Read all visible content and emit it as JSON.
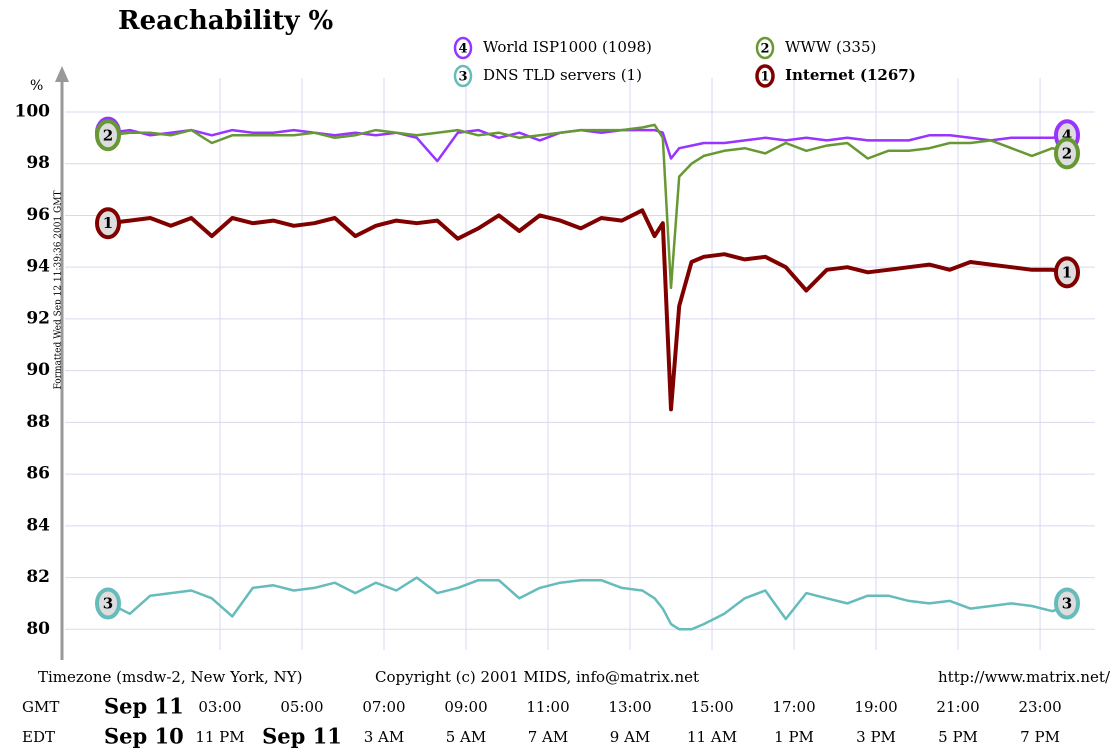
{
  "chart_data": {
    "type": "line",
    "title": "Reachability %",
    "y_label": "%",
    "side_note": "Formatted Wed Sep 12 11:39:36 2001 GMT",
    "footer": [
      "Timezone (msdw-2, New York, NY)",
      "Copyright (c) 2001 MIDS, info@matrix.net",
      "http://www.matrix.net/"
    ],
    "x": [
      0.3,
      0.8,
      1.3,
      1.8,
      2.3,
      2.8,
      3.3,
      3.8,
      4.3,
      4.8,
      5.3,
      5.8,
      6.3,
      6.8,
      7.3,
      7.8,
      8.3,
      8.8,
      9.3,
      9.8,
      10.3,
      10.8,
      11.3,
      11.8,
      12.3,
      12.8,
      13.3,
      13.6,
      13.8,
      14.0,
      14.2,
      14.5,
      14.8,
      15.3,
      15.8,
      16.3,
      16.8,
      17.3,
      17.8,
      18.3,
      18.8,
      19.3,
      19.8,
      20.3,
      20.8,
      21.3,
      21.8,
      22.3,
      22.8,
      23.3,
      23.8
    ],
    "xlim": [
      -0.78,
      24.34
    ],
    "x_rows": [
      {
        "name": "GMT",
        "start_label": "Sep 11",
        "ticks": [
          {
            "value": 3,
            "label": "03:00"
          },
          {
            "value": 5,
            "label": "05:00"
          },
          {
            "value": 7,
            "label": "07:00"
          },
          {
            "value": 9,
            "label": "09:00"
          },
          {
            "value": 11,
            "label": "11:00"
          },
          {
            "value": 13,
            "label": "13:00"
          },
          {
            "value": 15,
            "label": "15:00"
          },
          {
            "value": 17,
            "label": "17:00"
          },
          {
            "value": 19,
            "label": "19:00"
          },
          {
            "value": 21,
            "label": "21:00"
          },
          {
            "value": 23,
            "label": "23:00"
          }
        ]
      },
      {
        "name": "EDT",
        "start_label": "Sep 10",
        "date_ticks": [
          {
            "value": 5,
            "label": "Sep 11"
          }
        ],
        "ticks": [
          {
            "value": 3,
            "label": "11 PM"
          },
          {
            "value": 7,
            "label": "3 AM"
          },
          {
            "value": 9,
            "label": "5 AM"
          },
          {
            "value": 11,
            "label": "7 AM"
          },
          {
            "value": 13,
            "label": "9 AM"
          },
          {
            "value": 15,
            "label": "11 AM"
          },
          {
            "value": 17,
            "label": "1 PM"
          },
          {
            "value": 19,
            "label": "3 PM"
          },
          {
            "value": 21,
            "label": "5 PM"
          },
          {
            "value": 23,
            "label": "7 PM"
          }
        ]
      }
    ],
    "ylim": [
      79.2,
      101.7
    ],
    "yticks": [
      80,
      82,
      84,
      86,
      88,
      90,
      92,
      94,
      96,
      98,
      100
    ],
    "grid": true,
    "series": [
      {
        "name": "World ISP1000 (1098)",
        "badge": "4",
        "color": "#9933ff",
        "values": [
          99.2,
          99.3,
          99.1,
          99.2,
          99.3,
          99.1,
          99.3,
          99.2,
          99.2,
          99.3,
          99.2,
          99.1,
          99.2,
          99.1,
          99.2,
          99.0,
          98.1,
          99.2,
          99.3,
          99.0,
          99.2,
          98.9,
          99.2,
          99.3,
          99.2,
          99.3,
          99.3,
          99.3,
          99.2,
          98.2,
          98.6,
          98.7,
          98.8,
          98.8,
          98.9,
          99.0,
          98.9,
          99.0,
          98.9,
          99.0,
          98.9,
          98.9,
          98.9,
          99.1,
          99.1,
          99.0,
          98.9,
          99.0,
          99.0,
          99.0,
          99.1
        ]
      },
      {
        "name": "WWW (335)",
        "badge": "2",
        "color": "#669933",
        "values": [
          99.1,
          99.2,
          99.2,
          99.1,
          99.3,
          98.8,
          99.1,
          99.1,
          99.1,
          99.1,
          99.2,
          99.0,
          99.1,
          99.3,
          99.2,
          99.1,
          99.2,
          99.3,
          99.1,
          99.2,
          99.0,
          99.1,
          99.2,
          99.3,
          99.3,
          99.3,
          99.4,
          99.5,
          99.0,
          93.2,
          97.5,
          98.0,
          98.3,
          98.5,
          98.6,
          98.4,
          98.8,
          98.5,
          98.7,
          98.8,
          98.2,
          98.5,
          98.5,
          98.6,
          98.8,
          98.8,
          98.9,
          98.6,
          98.3,
          98.6,
          98.4
        ]
      },
      {
        "name": "DNS TLD servers (1)",
        "badge": "3",
        "color": "#66bbbb",
        "values": [
          81.0,
          80.6,
          81.3,
          81.4,
          81.5,
          81.2,
          80.5,
          81.6,
          81.7,
          81.5,
          81.6,
          81.8,
          81.4,
          81.8,
          81.5,
          82.0,
          81.4,
          81.6,
          81.9,
          81.9,
          81.2,
          81.6,
          81.8,
          81.9,
          81.9,
          81.6,
          81.5,
          81.2,
          80.8,
          80.2,
          80.0,
          80.0,
          80.2,
          80.6,
          81.2,
          81.5,
          80.4,
          81.4,
          81.2,
          81.0,
          81.3,
          81.3,
          81.1,
          81.0,
          81.1,
          80.8,
          80.9,
          81.0,
          80.9,
          80.7,
          81.0
        ]
      },
      {
        "name": "Internet (1267)",
        "badge": "1",
        "color": "#800000",
        "values": [
          95.7,
          95.8,
          95.9,
          95.6,
          95.9,
          95.2,
          95.9,
          95.7,
          95.8,
          95.6,
          95.7,
          95.9,
          95.2,
          95.6,
          95.8,
          95.7,
          95.8,
          95.1,
          95.5,
          96.0,
          95.4,
          96.0,
          95.8,
          95.5,
          95.9,
          95.8,
          96.2,
          95.2,
          95.7,
          88.5,
          92.5,
          94.2,
          94.4,
          94.5,
          94.3,
          94.4,
          94.0,
          93.1,
          93.9,
          94.0,
          93.8,
          93.9,
          94.0,
          94.1,
          93.9,
          94.2,
          94.1,
          94.0,
          93.9,
          93.9,
          93.8
        ]
      }
    ]
  }
}
